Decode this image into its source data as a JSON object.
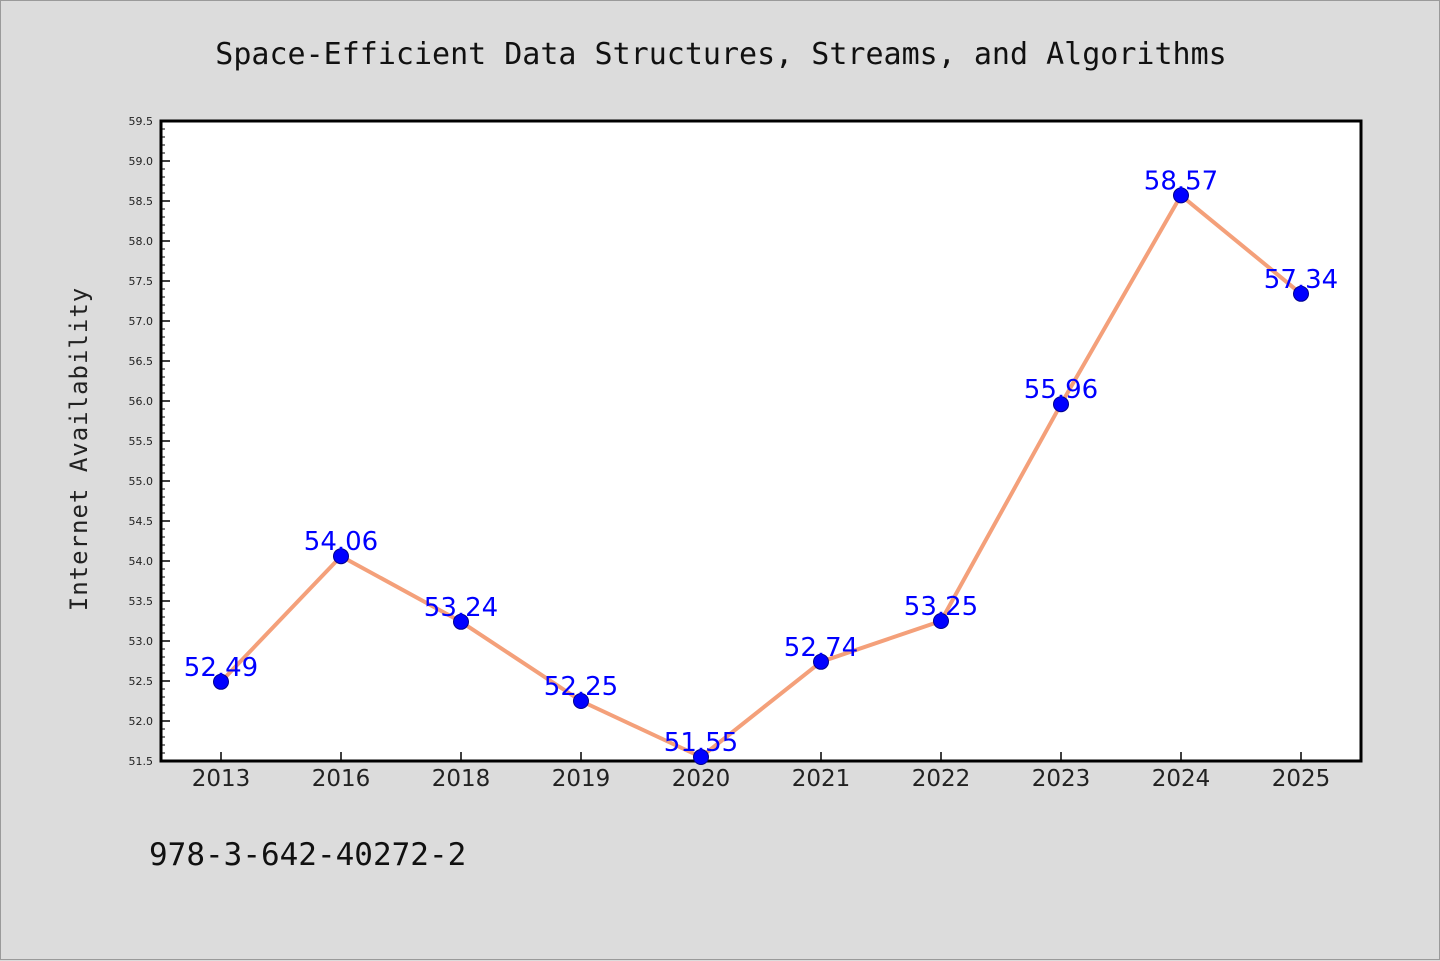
{
  "chart_data": {
    "type": "line",
    "title": "Space-Efficient Data Structures, Streams, and Algorithms",
    "xlabel": "",
    "ylabel": "Internet Availability",
    "categories": [
      "2013",
      "2016",
      "2018",
      "2019",
      "2020",
      "2021",
      "2022",
      "2023",
      "2024",
      "2025"
    ],
    "series": [
      {
        "values": [
          52.49,
          54.06,
          53.24,
          52.25,
          51.55,
          52.74,
          53.25,
          55.96,
          58.57,
          57.34
        ],
        "labels": [
          "52.49",
          "54.06",
          "53.24",
          "52.25",
          "51.55",
          "52.74",
          "53.25",
          "55.96",
          "58.57",
          "57.34"
        ],
        "line_color": "#f4a07a",
        "marker_color": "#0000ff"
      }
    ],
    "ylim": [
      51.5,
      59.5
    ],
    "yticks": [
      "51.5",
      "52.0",
      "52.5",
      "53.0",
      "53.5",
      "54.0",
      "54.5",
      "55.0",
      "55.5",
      "56.0",
      "56.5",
      "57.0",
      "57.5",
      "58.0",
      "58.5",
      "59.0",
      "59.5"
    ],
    "grid": false,
    "legend": "none"
  },
  "footer": {
    "isbn": "978-3-642-40272-2"
  },
  "colors": {
    "background": "#dcdcdc",
    "plot_background": "#ffffff",
    "line": "#f4a07a",
    "marker": "#0000ff",
    "data_label": "#0000ff"
  }
}
